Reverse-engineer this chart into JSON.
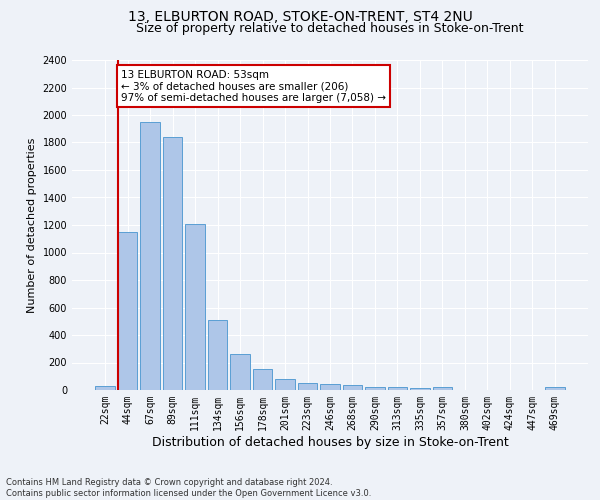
{
  "title1": "13, ELBURTON ROAD, STOKE-ON-TRENT, ST4 2NU",
  "title2": "Size of property relative to detached houses in Stoke-on-Trent",
  "xlabel": "Distribution of detached houses by size in Stoke-on-Trent",
  "ylabel": "Number of detached properties",
  "categories": [
    "22sqm",
    "44sqm",
    "67sqm",
    "89sqm",
    "111sqm",
    "134sqm",
    "156sqm",
    "178sqm",
    "201sqm",
    "223sqm",
    "246sqm",
    "268sqm",
    "290sqm",
    "313sqm",
    "335sqm",
    "357sqm",
    "380sqm",
    "402sqm",
    "424sqm",
    "447sqm",
    "469sqm"
  ],
  "values": [
    30,
    1150,
    1950,
    1840,
    1210,
    510,
    265,
    155,
    80,
    50,
    45,
    40,
    20,
    25,
    15,
    20,
    0,
    0,
    0,
    0,
    20
  ],
  "bar_color": "#aec6e8",
  "bar_edge_color": "#5a9fd4",
  "annotation_text": "13 ELBURTON ROAD: 53sqm\n← 3% of detached houses are smaller (206)\n97% of semi-detached houses are larger (7,058) →",
  "annotation_box_color": "#ffffff",
  "annotation_box_edge_color": "#cc0000",
  "vline_color": "#cc0000",
  "footer1": "Contains HM Land Registry data © Crown copyright and database right 2024.",
  "footer2": "Contains public sector information licensed under the Open Government Licence v3.0.",
  "ylim": [
    0,
    2400
  ],
  "background_color": "#eef2f8",
  "grid_color": "#ffffff",
  "title1_fontsize": 10,
  "title2_fontsize": 9,
  "xlabel_fontsize": 9,
  "ylabel_fontsize": 8,
  "tick_fontsize": 7,
  "footer_fontsize": 6
}
